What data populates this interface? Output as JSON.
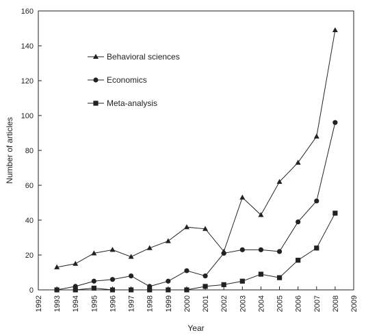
{
  "chart_data": {
    "type": "line",
    "xlabel": "Year",
    "ylabel": "Number of articles",
    "xlim": [
      1992,
      2009
    ],
    "ylim": [
      0,
      160
    ],
    "x_ticks": [
      "1992",
      "1993",
      "1994",
      "1995",
      "1996",
      "1997",
      "1998",
      "1999",
      "2000",
      "2001",
      "2002",
      "2003",
      "2004",
      "2005",
      "2006",
      "2007",
      "2008",
      "2009"
    ],
    "y_ticks": [
      "0",
      "20",
      "40",
      "60",
      "80",
      "100",
      "120",
      "140",
      "160"
    ],
    "grid": false,
    "legend_position": "upper-left",
    "x": [
      1993,
      1994,
      1995,
      1996,
      1997,
      1998,
      1999,
      2000,
      2001,
      2002,
      2003,
      2004,
      2005,
      2006,
      2007,
      2008
    ],
    "series": [
      {
        "name": "Behavioral sciences",
        "marker": "triangle",
        "values": [
          13,
          15,
          21,
          23,
          19,
          24,
          28,
          36,
          35,
          22,
          53,
          43,
          62,
          73,
          88,
          149
        ]
      },
      {
        "name": "Economics",
        "marker": "circle",
        "values": [
          0,
          2,
          5,
          6,
          8,
          2,
          5,
          11,
          8,
          21,
          23,
          23,
          22,
          39,
          51,
          96
        ]
      },
      {
        "name": "Meta-analysis",
        "marker": "square",
        "values": [
          0,
          0,
          1,
          0,
          0,
          0,
          0,
          0,
          2,
          3,
          5,
          9,
          7,
          17,
          24,
          44
        ]
      }
    ],
    "color": "#222222"
  }
}
